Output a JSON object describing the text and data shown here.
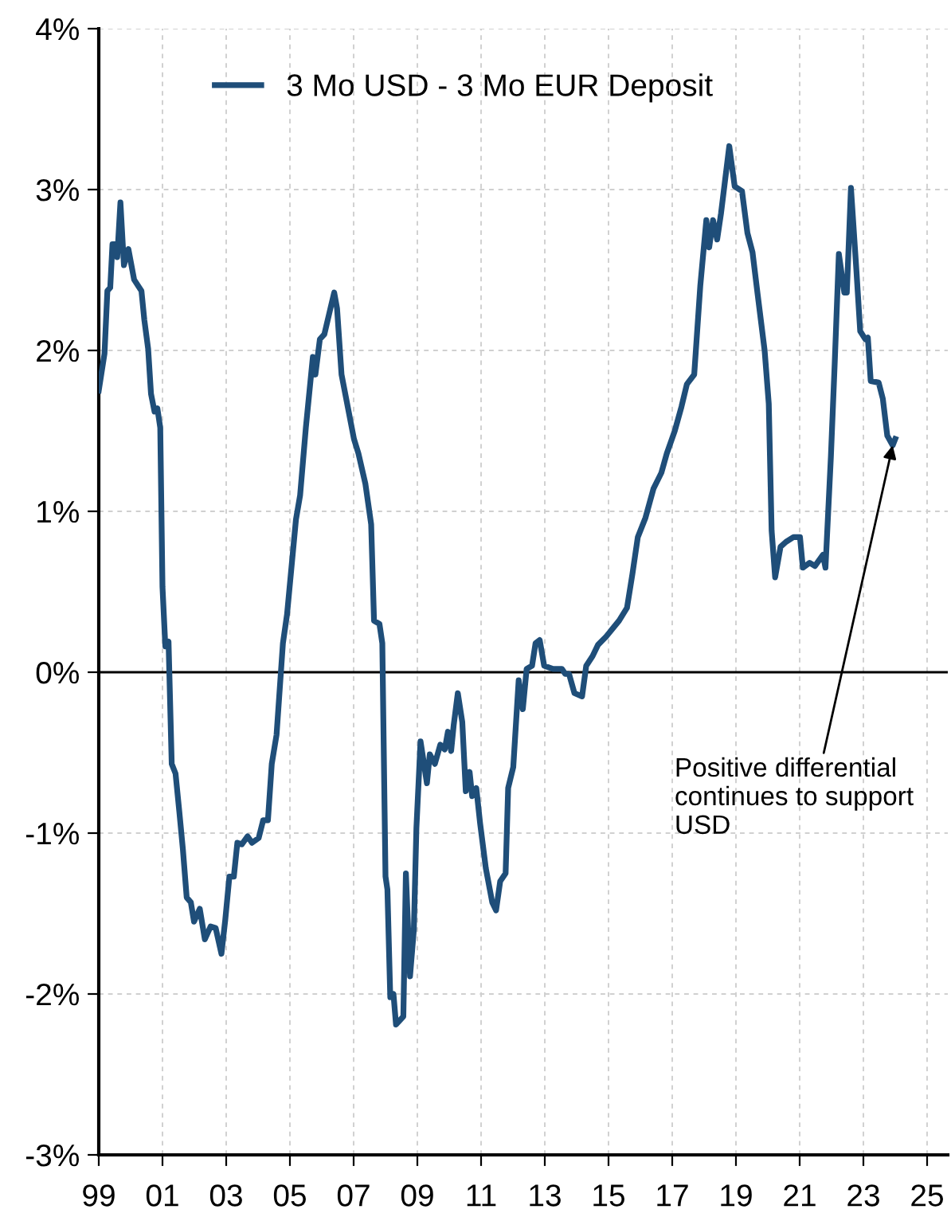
{
  "chart_data": {
    "type": "line",
    "x": [
      1999.0,
      1999.18,
      1999.27,
      1999.36,
      1999.43,
      1999.54,
      1999.58,
      1999.68,
      1999.79,
      1999.93,
      2000.11,
      2000.34,
      2000.43,
      2000.55,
      2000.64,
      2000.75,
      2000.84,
      2000.93,
      2001.0,
      2001.09,
      2001.19,
      2001.29,
      2001.41,
      2001.53,
      2001.64,
      2001.76,
      2001.89,
      2001.99,
      2002.17,
      2002.33,
      2002.51,
      2002.67,
      2002.85,
      2002.97,
      2003.1,
      2003.24,
      2003.35,
      2003.49,
      2003.67,
      2003.81,
      2004.02,
      2004.16,
      2004.31,
      2004.43,
      2004.58,
      2004.78,
      2004.91,
      2005.19,
      2005.32,
      2005.5,
      2005.72,
      2005.8,
      2005.94,
      2006.08,
      2006.27,
      2006.39,
      2006.48,
      2006.62,
      2007.01,
      2007.15,
      2007.37,
      2007.55,
      2007.64,
      2007.81,
      2007.9,
      2008.0,
      2008.06,
      2008.15,
      2008.25,
      2008.33,
      2008.56,
      2008.64,
      2008.77,
      2008.89,
      2008.97,
      2009.1,
      2009.3,
      2009.39,
      2009.55,
      2009.72,
      2009.86,
      2009.96,
      2010.06,
      2010.14,
      2010.27,
      2010.41,
      2010.52,
      2010.64,
      2010.72,
      2010.85,
      2010.97,
      2011.15,
      2011.35,
      2011.47,
      2011.6,
      2011.77,
      2011.85,
      2012.01,
      2012.18,
      2012.31,
      2012.43,
      2012.6,
      2012.71,
      2012.84,
      2012.98,
      2013.26,
      2013.54,
      2013.64,
      2013.76,
      2013.93,
      2014.17,
      2014.3,
      2014.5,
      2014.67,
      2014.92,
      2015.33,
      2015.58,
      2015.75,
      2015.92,
      2016.16,
      2016.41,
      2016.66,
      2016.83,
      2017.08,
      2017.29,
      2017.46,
      2017.69,
      2017.88,
      2018.07,
      2018.16,
      2018.28,
      2018.41,
      2018.53,
      2018.79,
      2018.96,
      2019.19,
      2019.36,
      2019.52,
      2019.68,
      2019.9,
      2020.03,
      2020.12,
      2020.23,
      2020.4,
      2020.57,
      2020.81,
      2021.01,
      2021.1,
      2021.31,
      2021.48,
      2021.73,
      2021.81,
      2021.98,
      2022.1,
      2022.23,
      2022.4,
      2022.48,
      2022.61,
      2022.78,
      2022.9,
      2023.06,
      2023.14,
      2023.23,
      2023.48,
      2023.61,
      2023.75,
      2023.92,
      2024.0
    ],
    "series": [
      {
        "name": "3 Mo USD - 3 Mo EUR Deposit",
        "color": "#1f4e79",
        "values": [
          1.75,
          1.98,
          2.37,
          2.39,
          2.66,
          2.66,
          2.58,
          2.92,
          2.53,
          2.63,
          2.44,
          2.37,
          2.19,
          2.01,
          1.73,
          1.62,
          1.64,
          1.52,
          0.53,
          0.16,
          0.19,
          -0.57,
          -0.63,
          -0.87,
          -1.1,
          -1.4,
          -1.43,
          -1.55,
          -1.47,
          -1.66,
          -1.58,
          -1.59,
          -1.75,
          -1.54,
          -1.27,
          -1.27,
          -1.06,
          -1.07,
          -1.02,
          -1.06,
          -1.03,
          -0.92,
          -0.92,
          -0.57,
          -0.39,
          0.18,
          0.36,
          0.95,
          1.1,
          1.52,
          1.96,
          1.85,
          2.07,
          2.1,
          2.26,
          2.36,
          2.26,
          1.85,
          1.45,
          1.36,
          1.17,
          0.92,
          0.32,
          0.3,
          0.18,
          -1.27,
          -1.35,
          -2.02,
          -2.0,
          -2.19,
          -2.14,
          -1.25,
          -1.89,
          -1.6,
          -0.97,
          -0.43,
          -0.69,
          -0.51,
          -0.57,
          -0.45,
          -0.48,
          -0.37,
          -0.49,
          -0.33,
          -0.13,
          -0.31,
          -0.74,
          -0.62,
          -0.77,
          -0.72,
          -0.94,
          -1.22,
          -1.43,
          -1.48,
          -1.3,
          -1.25,
          -0.72,
          -0.59,
          -0.05,
          -0.23,
          0.02,
          0.04,
          0.18,
          0.2,
          0.04,
          0.02,
          0.02,
          -0.01,
          -0.01,
          -0.13,
          -0.15,
          0.04,
          0.1,
          0.17,
          0.22,
          0.32,
          0.4,
          0.61,
          0.84,
          0.96,
          1.14,
          1.24,
          1.36,
          1.5,
          1.65,
          1.79,
          1.85,
          2.4,
          2.81,
          2.64,
          2.81,
          2.69,
          2.85,
          3.27,
          3.02,
          2.99,
          2.73,
          2.61,
          2.35,
          2.0,
          1.67,
          0.88,
          0.59,
          0.78,
          0.81,
          0.84,
          0.84,
          0.65,
          0.68,
          0.66,
          0.73,
          0.65,
          1.34,
          1.92,
          2.6,
          2.36,
          2.36,
          3.01,
          2.5,
          2.12,
          2.07,
          2.08,
          1.81,
          1.8,
          1.7,
          1.47,
          1.41,
          1.45
        ]
      }
    ],
    "xlim": [
      1999,
      2025.65
    ],
    "xticks": [
      {
        "value": 1999,
        "label": "99"
      },
      {
        "value": 2001,
        "label": "01"
      },
      {
        "value": 2003,
        "label": "03"
      },
      {
        "value": 2005,
        "label": "05"
      },
      {
        "value": 2007,
        "label": "07"
      },
      {
        "value": 2009,
        "label": "09"
      },
      {
        "value": 2011,
        "label": "11"
      },
      {
        "value": 2013,
        "label": "13"
      },
      {
        "value": 2015,
        "label": "15"
      },
      {
        "value": 2017,
        "label": "17"
      },
      {
        "value": 2019,
        "label": "19"
      },
      {
        "value": 2021,
        "label": "21"
      },
      {
        "value": 2023,
        "label": "23"
      },
      {
        "value": 2025,
        "label": "25"
      }
    ],
    "ylim": [
      -3,
      4
    ],
    "yticks": [
      {
        "value": -3,
        "label": "-3%"
      },
      {
        "value": -2,
        "label": "-2%"
      },
      {
        "value": -1,
        "label": "-1%"
      },
      {
        "value": 0,
        "label": "0%"
      },
      {
        "value": 1,
        "label": "1%"
      },
      {
        "value": 2,
        "label": "2%"
      },
      {
        "value": 3,
        "label": "3%"
      },
      {
        "value": 4,
        "label": "4%"
      }
    ],
    "ref_lines": [
      {
        "axis": "y",
        "value": 0,
        "color": "#000000"
      }
    ],
    "annotations": [
      {
        "text": "Positive differential\ncontinues to support\nUSD",
        "x": 2023.92,
        "y": 1.41
      }
    ],
    "grid": true,
    "legend": "top",
    "line_style": "solid",
    "marker": "none"
  }
}
